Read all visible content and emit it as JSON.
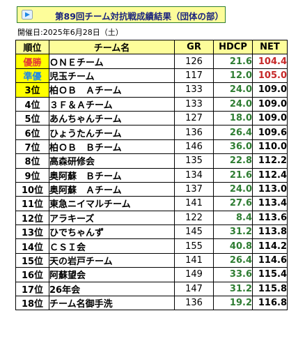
{
  "header": {
    "title": "第89回チーム対抗戦成績結果（団体の部）",
    "date_line": "開催日:2025年6月28日（土）",
    "icon": "play-arrow-icon"
  },
  "colors": {
    "title_bg": "#fdfd9a",
    "title_text": "#1a237e",
    "winner_rank": "#e53935",
    "runner_up_rank": "#1e88e5",
    "highlight_rank_bg": "#ffff00",
    "hdcp_text": "#2e7d32",
    "net_top": "#c62828"
  },
  "table": {
    "headers": {
      "rank": "順位",
      "name": "チーム名",
      "gr": "GR",
      "hdcp": "HDCP",
      "net": "NET"
    },
    "rows": [
      {
        "rank": "優勝",
        "name": "ＯＮＥチーム",
        "gr": "126",
        "hdcp": "21.6",
        "net": "104.4"
      },
      {
        "rank": "準優",
        "name": "児玉チーム",
        "gr": "117",
        "hdcp": "12.0",
        "net": "105.0"
      },
      {
        "rank": "3位",
        "name": "柏ＯＢ　Ａチーム",
        "gr": "133",
        "hdcp": "24.0",
        "net": "109.0"
      },
      {
        "rank": "4位",
        "name": "３Ｆ＆Ａチーム",
        "gr": "133",
        "hdcp": "24.0",
        "net": "109.0"
      },
      {
        "rank": "5位",
        "name": "あんちゃんチーム",
        "gr": "127",
        "hdcp": "18.0",
        "net": "109.0"
      },
      {
        "rank": "6位",
        "name": "ひょうたんチーム",
        "gr": "136",
        "hdcp": "26.4",
        "net": "109.6"
      },
      {
        "rank": "7位",
        "name": "柏ＯＢ　Ｂチーム",
        "gr": "146",
        "hdcp": "36.0",
        "net": "110.0"
      },
      {
        "rank": "8位",
        "name": "高森研修会",
        "gr": "135",
        "hdcp": "22.8",
        "net": "112.2"
      },
      {
        "rank": "9位",
        "name": "奥阿蘇　Ｂチーム",
        "gr": "134",
        "hdcp": "21.6",
        "net": "112.4"
      },
      {
        "rank": "10位",
        "name": "奥阿蘇　Ａチーム",
        "gr": "137",
        "hdcp": "24.0",
        "net": "113.0"
      },
      {
        "rank": "11位",
        "name": "東急ニイマルチーム",
        "gr": "141",
        "hdcp": "27.6",
        "net": "113.4"
      },
      {
        "rank": "12位",
        "name": "アラキーズ",
        "gr": "122",
        "hdcp": "8.4",
        "net": "113.6"
      },
      {
        "rank": "13位",
        "name": "ひでちゃんず",
        "gr": "145",
        "hdcp": "31.2",
        "net": "113.8"
      },
      {
        "rank": "14位",
        "name": "ＣＳＩ会",
        "gr": "155",
        "hdcp": "40.8",
        "net": "114.2"
      },
      {
        "rank": "15位",
        "name": "天の岩戸チーム",
        "gr": "141",
        "hdcp": "26.4",
        "net": "114.6"
      },
      {
        "rank": "16位",
        "name": "阿蘇望会",
        "gr": "149",
        "hdcp": "33.6",
        "net": "115.4"
      },
      {
        "rank": "17位",
        "name": "26年会",
        "gr": "147",
        "hdcp": "31.2",
        "net": "115.8"
      },
      {
        "rank": "18位",
        "name": "チーム名御手洗",
        "gr": "136",
        "hdcp": "19.2",
        "net": "116.8"
      }
    ]
  }
}
